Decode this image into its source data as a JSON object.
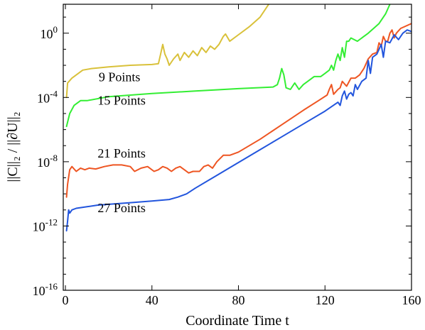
{
  "chart_data": {
    "type": "line",
    "xlabel": "Coordinate Time t",
    "ylabel": "||C||₂ / ||∂U||₂",
    "xlim": [
      -1,
      160
    ],
    "ylim_log10": [
      -16,
      1.8
    ],
    "yscale": "log",
    "grid": false,
    "x_ticks": [
      0,
      40,
      80,
      120,
      160
    ],
    "x_tick_labels": [
      "0",
      "40",
      "80",
      "120",
      "160"
    ],
    "y_ticks_log10": [
      -16,
      -12,
      -8,
      -4,
      0
    ],
    "y_tick_labels": [
      {
        "base": "10",
        "exp": "-16"
      },
      {
        "base": "10",
        "exp": "-12"
      },
      {
        "base": "10",
        "exp": "-8"
      },
      {
        "base": "10",
        "exp": "-4"
      },
      {
        "base": "10",
        "exp": "0"
      }
    ],
    "series": [
      {
        "name": "9 Points",
        "color": "#d9c13a",
        "log10_points": [
          [
            0.5,
            -4.0
          ],
          [
            1,
            -3.1
          ],
          [
            3,
            -2.8
          ],
          [
            5,
            -2.6
          ],
          [
            8,
            -2.3
          ],
          [
            12,
            -2.2
          ],
          [
            20,
            -2.1
          ],
          [
            30,
            -2.0
          ],
          [
            40,
            -1.95
          ],
          [
            43,
            -1.9
          ],
          [
            44,
            -1.3
          ],
          [
            45,
            -0.7
          ],
          [
            46,
            -1.3
          ],
          [
            47,
            -1.6
          ],
          [
            48,
            -2.0
          ],
          [
            50,
            -1.6
          ],
          [
            52,
            -1.3
          ],
          [
            53,
            -1.7
          ],
          [
            55,
            -1.2
          ],
          [
            57,
            -1.5
          ],
          [
            59,
            -1.1
          ],
          [
            61,
            -1.4
          ],
          [
            63,
            -0.9
          ],
          [
            65,
            -1.2
          ],
          [
            67,
            -0.8
          ],
          [
            69,
            -1.0
          ],
          [
            71,
            -0.7
          ],
          [
            73,
            -0.2
          ],
          [
            74,
            -0.05
          ],
          [
            76,
            -0.5
          ],
          [
            80,
            -0.1
          ],
          [
            85,
            0.4
          ],
          [
            90,
            1.0
          ],
          [
            94,
            1.8
          ]
        ]
      },
      {
        "name": "15 Points",
        "color": "#33ee33",
        "log10_points": [
          [
            0.5,
            -5.8
          ],
          [
            2,
            -5.0
          ],
          [
            4,
            -4.5
          ],
          [
            7,
            -4.2
          ],
          [
            10,
            -4.2
          ],
          [
            20,
            -3.95
          ],
          [
            40,
            -3.75
          ],
          [
            60,
            -3.6
          ],
          [
            80,
            -3.45
          ],
          [
            96,
            -3.35
          ],
          [
            98,
            -3.2
          ],
          [
            99,
            -2.8
          ],
          [
            100,
            -2.2
          ],
          [
            101,
            -2.6
          ],
          [
            102,
            -3.4
          ],
          [
            104,
            -3.5
          ],
          [
            106,
            -3.1
          ],
          [
            108,
            -3.5
          ],
          [
            110,
            -3.2
          ],
          [
            112,
            -3.0
          ],
          [
            115,
            -2.7
          ],
          [
            118,
            -2.7
          ],
          [
            120,
            -2.5
          ],
          [
            122,
            -2.3
          ],
          [
            123,
            -2.0
          ],
          [
            124,
            -2.3
          ],
          [
            125,
            -1.7
          ],
          [
            126,
            -1.3
          ],
          [
            127,
            -1.7
          ],
          [
            128,
            -0.9
          ],
          [
            129,
            -1.5
          ],
          [
            130,
            -0.5
          ],
          [
            131,
            -0.5
          ],
          [
            132,
            -0.3
          ],
          [
            135,
            -0.5
          ],
          [
            140,
            0.0
          ],
          [
            145,
            0.6
          ],
          [
            148,
            1.2
          ],
          [
            150,
            1.8
          ]
        ]
      },
      {
        "name": "21 Points",
        "color": "#ee5522",
        "log10_points": [
          [
            0.5,
            -10.2
          ],
          [
            1,
            -9.4
          ],
          [
            2,
            -8.5
          ],
          [
            3,
            -8.3
          ],
          [
            5,
            -8.6
          ],
          [
            7,
            -8.4
          ],
          [
            9,
            -8.5
          ],
          [
            11,
            -8.4
          ],
          [
            14,
            -8.45
          ],
          [
            18,
            -8.3
          ],
          [
            22,
            -8.2
          ],
          [
            26,
            -8.2
          ],
          [
            30,
            -8.3
          ],
          [
            32,
            -8.6
          ],
          [
            35,
            -8.4
          ],
          [
            38,
            -8.3
          ],
          [
            41,
            -8.6
          ],
          [
            43,
            -8.5
          ],
          [
            45,
            -8.3
          ],
          [
            47,
            -8.4
          ],
          [
            49,
            -8.6
          ],
          [
            51,
            -8.4
          ],
          [
            53,
            -8.3
          ],
          [
            55,
            -8.5
          ],
          [
            57,
            -8.7
          ],
          [
            59,
            -8.6
          ],
          [
            62,
            -8.6
          ],
          [
            64,
            -8.3
          ],
          [
            66,
            -8.2
          ],
          [
            68,
            -8.4
          ],
          [
            70,
            -8.0
          ],
          [
            73,
            -7.6
          ],
          [
            76,
            -7.6
          ],
          [
            80,
            -7.4
          ],
          [
            90,
            -6.6
          ],
          [
            100,
            -5.7
          ],
          [
            110,
            -4.8
          ],
          [
            117,
            -4.2
          ],
          [
            121,
            -3.85
          ],
          [
            122,
            -3.5
          ],
          [
            123,
            -3.2
          ],
          [
            124,
            -3.8
          ],
          [
            126,
            -3.5
          ],
          [
            127,
            -3.4
          ],
          [
            128,
            -3.0
          ],
          [
            130,
            -3.3
          ],
          [
            132,
            -2.8
          ],
          [
            134,
            -2.8
          ],
          [
            136,
            -2.6
          ],
          [
            138,
            -2.2
          ],
          [
            140,
            -1.6
          ],
          [
            142,
            -1.3
          ],
          [
            144,
            -1.2
          ],
          [
            145,
            -0.6
          ],
          [
            146,
            -0.8
          ],
          [
            147,
            -0.2
          ],
          [
            148,
            -0.5
          ],
          [
            149,
            -0.5
          ],
          [
            150,
            0.0
          ],
          [
            151,
            0.2
          ],
          [
            152,
            -0.3
          ],
          [
            153,
            0.0
          ],
          [
            155,
            0.3
          ],
          [
            160,
            0.6
          ]
        ]
      },
      {
        "name": "27 Points",
        "color": "#2255dd",
        "log10_points": [
          [
            0.5,
            -12.3
          ],
          [
            1,
            -11.7
          ],
          [
            1.5,
            -11.0
          ],
          [
            2,
            -11.2
          ],
          [
            3,
            -11.0
          ],
          [
            5,
            -10.9
          ],
          [
            10,
            -10.8
          ],
          [
            15,
            -10.7
          ],
          [
            20,
            -10.65
          ],
          [
            30,
            -10.55
          ],
          [
            40,
            -10.45
          ],
          [
            48,
            -10.35
          ],
          [
            52,
            -10.2
          ],
          [
            56,
            -10.0
          ],
          [
            60,
            -9.65
          ],
          [
            70,
            -8.85
          ],
          [
            80,
            -8.05
          ],
          [
            90,
            -7.25
          ],
          [
            100,
            -6.45
          ],
          [
            110,
            -5.65
          ],
          [
            120,
            -4.85
          ],
          [
            126,
            -4.3
          ],
          [
            127,
            -4.5
          ],
          [
            128,
            -3.9
          ],
          [
            129,
            -3.6
          ],
          [
            130,
            -4.1
          ],
          [
            131,
            -3.8
          ],
          [
            132,
            -3.7
          ],
          [
            133,
            -3.9
          ],
          [
            134,
            -3.2
          ],
          [
            135,
            -3.5
          ],
          [
            137,
            -3.0
          ],
          [
            139,
            -2.8
          ],
          [
            140,
            -1.7
          ],
          [
            141,
            -2.5
          ],
          [
            142,
            -1.5
          ],
          [
            144,
            -1.3
          ],
          [
            146,
            -0.7
          ],
          [
            147,
            -1.5
          ],
          [
            148,
            -0.5
          ],
          [
            150,
            -0.6
          ],
          [
            152,
            -0.1
          ],
          [
            154,
            -0.4
          ],
          [
            156,
            0.0
          ],
          [
            158,
            0.2
          ],
          [
            160,
            0.1
          ]
        ]
      }
    ],
    "series_labels": [
      {
        "name": "9 Points",
        "x": 25,
        "log10_y": -3.0
      },
      {
        "name": "15 Points",
        "x": 26,
        "log10_y": -4.45
      },
      {
        "name": "21 Points",
        "x": 26,
        "log10_y": -7.75
      },
      {
        "name": "27 Points",
        "x": 26,
        "log10_y": -11.15
      }
    ]
  }
}
